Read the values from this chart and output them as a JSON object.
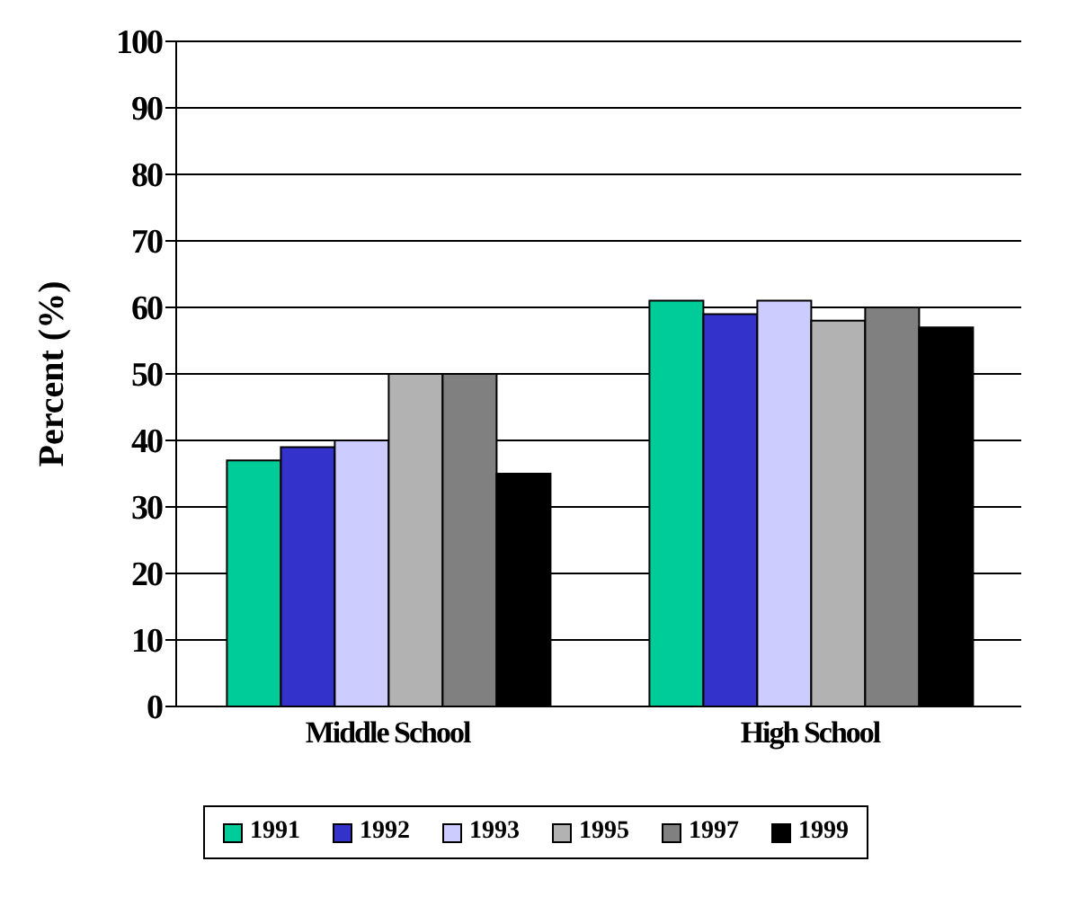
{
  "chart_data": {
    "type": "bar",
    "ylabel": "Percent (%)",
    "categories": [
      "Middle School",
      "High School"
    ],
    "series": [
      {
        "name": "1991",
        "color": "#00cc99",
        "values": [
          37,
          61
        ]
      },
      {
        "name": "1992",
        "color": "#3333cc",
        "values": [
          39,
          59
        ]
      },
      {
        "name": "1993",
        "color": "#ccccff",
        "values": [
          40,
          61
        ]
      },
      {
        "name": "1995",
        "color": "#b2b2b2",
        "values": [
          50,
          58
        ]
      },
      {
        "name": "1997",
        "color": "#808080",
        "values": [
          50,
          60
        ]
      },
      {
        "name": "1999",
        "color": "#000000",
        "values": [
          35,
          57
        ]
      }
    ],
    "ylim": [
      0,
      100
    ],
    "yticks": [
      0,
      10,
      20,
      30,
      40,
      50,
      60,
      70,
      80,
      90,
      100
    ],
    "grid": "y",
    "legend": "bottom"
  }
}
